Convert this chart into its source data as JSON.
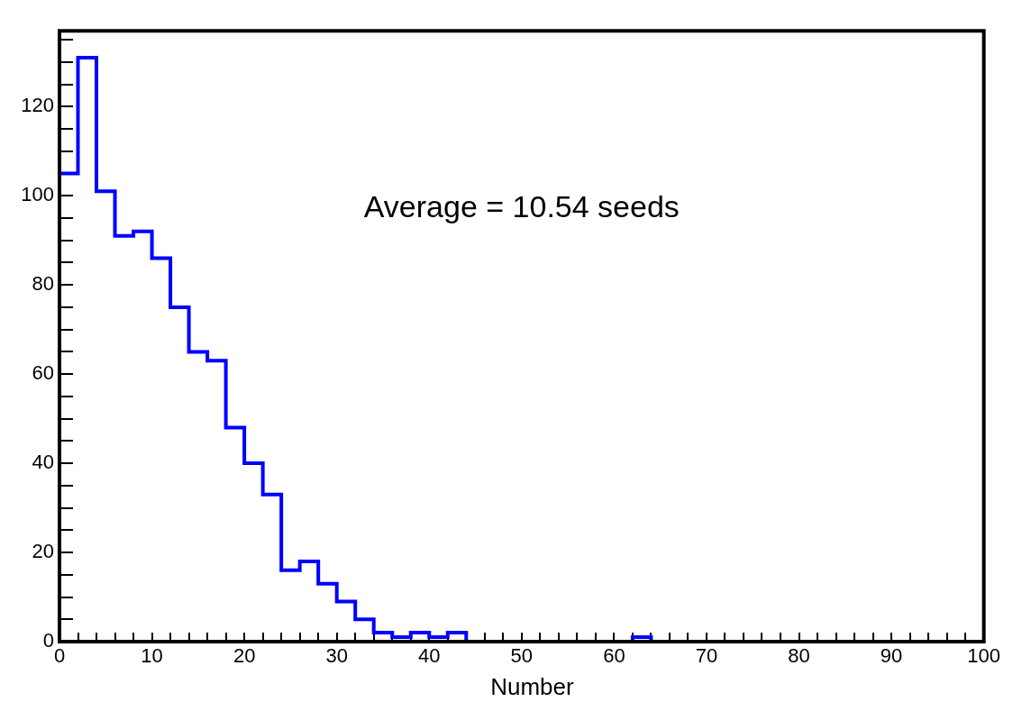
{
  "chart_data": {
    "type": "histogram",
    "xlabel": "Number",
    "annotations": [
      "Average = 10.54 seeds"
    ],
    "bins": [
      0,
      2,
      4,
      6,
      8,
      10,
      12,
      14,
      16,
      18,
      20,
      22,
      24,
      26,
      28,
      30,
      32,
      34,
      36,
      38,
      40,
      42,
      44,
      46,
      48,
      50,
      52,
      54,
      56,
      58,
      60,
      62,
      64,
      66,
      68,
      70,
      72,
      74,
      76,
      78,
      80,
      82,
      84,
      86,
      88,
      90,
      92,
      94,
      96,
      98,
      100
    ],
    "values": [
      105,
      131,
      101,
      91,
      92,
      86,
      75,
      65,
      63,
      48,
      40,
      33,
      16,
      18,
      13,
      9,
      5,
      2,
      1,
      2,
      1,
      2,
      0,
      0,
      0,
      0,
      0,
      0,
      0,
      0,
      0,
      1,
      0,
      0,
      0,
      0,
      0,
      0,
      0,
      0,
      0,
      0,
      0,
      0,
      0,
      0,
      0,
      0,
      0,
      0
    ],
    "color": "#0000ff",
    "xlim": [
      0,
      100
    ],
    "ylim": [
      0,
      137
    ],
    "xticks": [
      0,
      {
        "value": 2,
        "label": null
      },
      {
        "value": 4,
        "label": null
      },
      {
        "value": 6,
        "label": null
      },
      {
        "value": 8,
        "label": null
      },
      10,
      {
        "value": 12,
        "label": null
      },
      {
        "value": 14,
        "label": null
      },
      {
        "value": 16,
        "label": null
      },
      {
        "value": 18,
        "label": null
      },
      20,
      {
        "value": 22,
        "label": null
      },
      {
        "value": 24,
        "label": null
      },
      {
        "value": 26,
        "label": null
      },
      {
        "value": 28,
        "label": null
      },
      30,
      {
        "value": 32,
        "label": null
      },
      {
        "value": 34,
        "label": null
      },
      {
        "value": 36,
        "label": null
      },
      {
        "value": 38,
        "label": null
      },
      40,
      {
        "value": 42,
        "label": null
      },
      {
        "value": 44,
        "label": null
      },
      {
        "value": 46,
        "label": null
      },
      {
        "value": 48,
        "label": null
      },
      50,
      {
        "value": 52,
        "label": null
      },
      {
        "value": 54,
        "label": null
      },
      {
        "value": 56,
        "label": null
      },
      {
        "value": 58,
        "label": null
      },
      60,
      {
        "value": 62,
        "label": null
      },
      {
        "value": 64,
        "label": null
      },
      {
        "value": 66,
        "label": null
      },
      {
        "value": 68,
        "label": null
      },
      70,
      {
        "value": 72,
        "label": null
      },
      {
        "value": 74,
        "label": null
      },
      {
        "value": 76,
        "label": null
      },
      {
        "value": 78,
        "label": null
      },
      80,
      {
        "value": 82,
        "label": null
      },
      {
        "value": 84,
        "label": null
      },
      {
        "value": 86,
        "label": null
      },
      {
        "value": 88,
        "label": null
      },
      90,
      {
        "value": 92,
        "label": null
      },
      {
        "value": 94,
        "label": null
      },
      {
        "value": 96,
        "label": null
      },
      {
        "value": 98,
        "label": null
      },
      100
    ],
    "yticks": [
      0,
      {
        "value": 5,
        "label": null
      },
      {
        "value": 10,
        "label": null
      },
      {
        "value": 15,
        "label": null
      },
      20,
      {
        "value": 25,
        "label": null
      },
      {
        "value": 30,
        "label": null
      },
      {
        "value": 35,
        "label": null
      },
      40,
      {
        "value": 45,
        "label": null
      },
      {
        "value": 50,
        "label": null
      },
      {
        "value": 55,
        "label": null
      },
      60,
      {
        "value": 65,
        "label": null
      },
      {
        "value": 70,
        "label": null
      },
      {
        "value": 75,
        "label": null
      },
      80,
      {
        "value": 85,
        "label": null
      },
      {
        "value": 90,
        "label": null
      },
      {
        "value": 95,
        "label": null
      },
      100,
      {
        "value": 105,
        "label": null
      },
      {
        "value": 110,
        "label": null
      },
      {
        "value": 115,
        "label": null
      },
      120,
      {
        "value": 125,
        "label": null
      },
      {
        "value": 130,
        "label": null
      },
      {
        "value": 135,
        "label": null
      }
    ],
    "grid": false,
    "legend": false
  }
}
